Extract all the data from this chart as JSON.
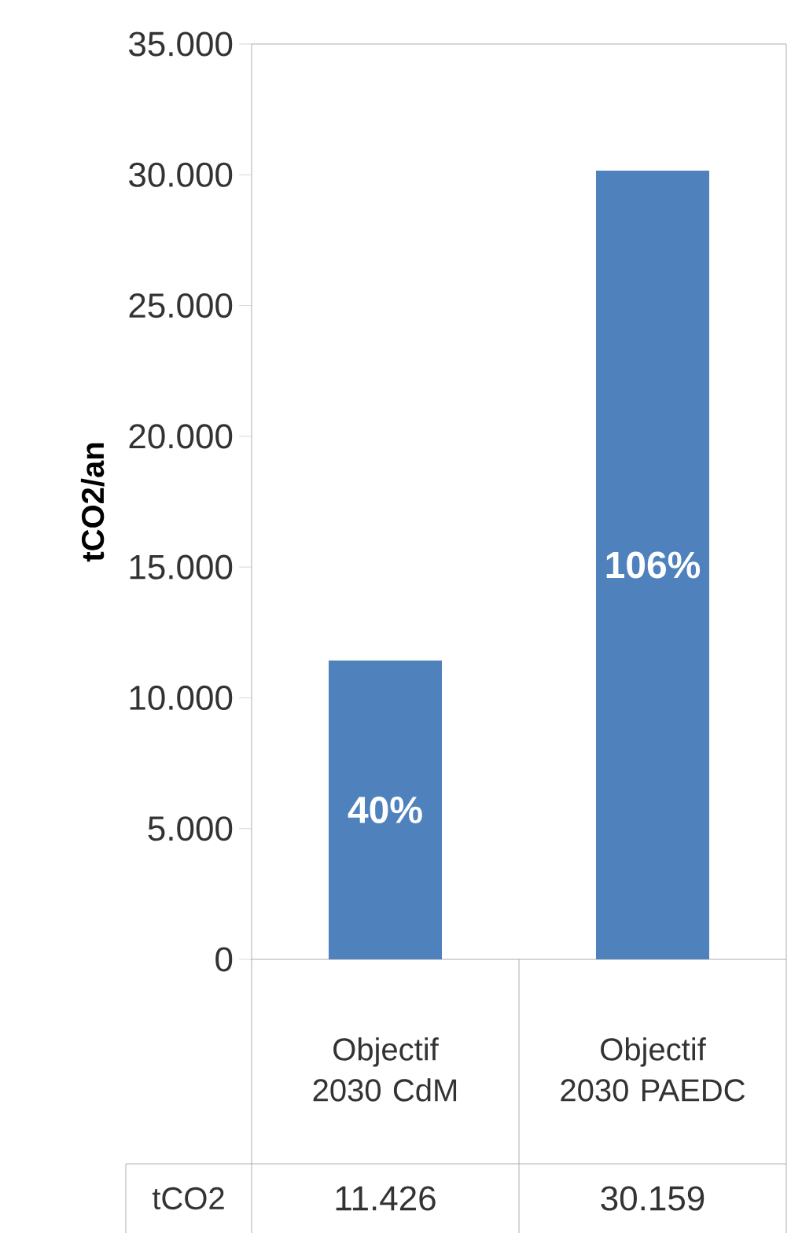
{
  "chart_data": {
    "type": "bar",
    "ylabel": "tCO2/an",
    "categories": [
      "Objectif 2030 CdM",
      "Objectif 2030 PAEDC"
    ],
    "series": [
      {
        "name": "tCO2",
        "color": "#4f81bd",
        "values": [
          11426,
          30159
        ],
        "value_labels": [
          "11.426",
          "30.159"
        ]
      }
    ],
    "ylim": [
      0,
      35000
    ],
    "yticks": [
      {
        "value": 0,
        "label": "0"
      },
      {
        "value": 5000,
        "label": "5.000"
      },
      {
        "value": 10000,
        "label": "10.000"
      },
      {
        "value": 15000,
        "label": "15.000"
      },
      {
        "value": 20000,
        "label": "20.000"
      },
      {
        "value": 25000,
        "label": "25.000"
      },
      {
        "value": 30000,
        "label": "30.000"
      },
      {
        "value": 35000,
        "label": "35.000"
      }
    ],
    "annotations": [
      "40%",
      "106%"
    ]
  }
}
